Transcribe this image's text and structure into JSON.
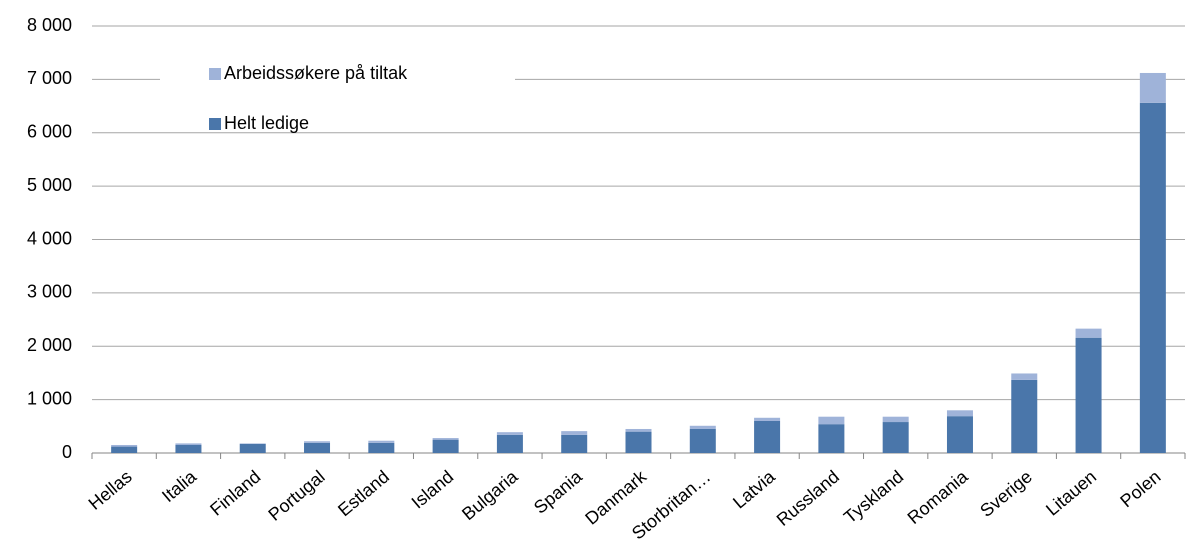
{
  "chart_data": {
    "type": "stacked_bar",
    "categories": [
      "Hellas",
      "Italia",
      "Finland",
      "Portugal",
      "Estland",
      "Island",
      "Bulgaria",
      "Spania",
      "Danmark",
      "Storbritan…",
      "Latvia",
      "Russland",
      "Tyskland",
      "Romania",
      "Sverige",
      "Litauen",
      "Polen"
    ],
    "series": [
      {
        "name": "Helt ledige",
        "color": "#4a76aa",
        "values": [
          120,
          150,
          170,
          190,
          190,
          250,
          340,
          340,
          400,
          450,
          600,
          540,
          580,
          690,
          1370,
          2160,
          6560
        ]
      },
      {
        "name": "Arbeidssøkere på tiltak",
        "color": "#9fb3d9",
        "values": [
          30,
          30,
          10,
          30,
          40,
          30,
          50,
          70,
          50,
          60,
          60,
          140,
          100,
          110,
          120,
          170,
          560
        ]
      }
    ],
    "ylim": [
      0,
      8000
    ],
    "yticks": [
      0,
      {
        "value": 1000,
        "label": "1 000"
      },
      {
        "value": 2000,
        "label": "2 000"
      },
      {
        "value": 3000,
        "label": "3 000"
      },
      {
        "value": 4000,
        "label": "4 000"
      },
      {
        "value": 5000,
        "label": "5 000"
      },
      {
        "value": 6000,
        "label": "6 000"
      },
      {
        "value": 7000,
        "label": "7 000"
      },
      {
        "value": 8000,
        "label": "8 000"
      }
    ],
    "grid": true,
    "legend": "upper-left"
  }
}
